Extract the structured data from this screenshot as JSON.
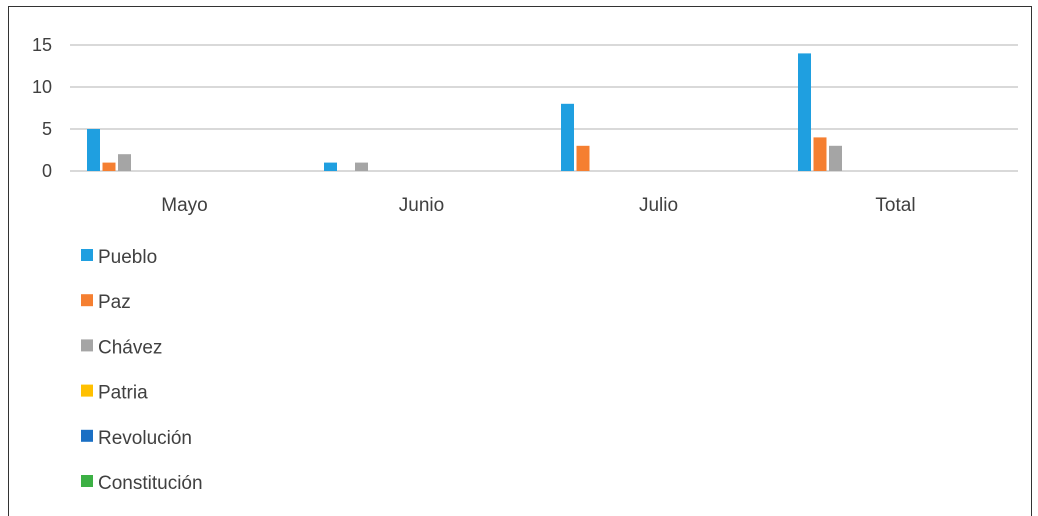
{
  "chart_data": {
    "type": "bar",
    "categories": [
      "Mayo",
      "Junio",
      "Julio",
      "Total"
    ],
    "series": [
      {
        "name": "Pueblo",
        "color": "#1f9fe0",
        "values": [
          5,
          1,
          8,
          14
        ]
      },
      {
        "name": "Paz",
        "color": "#f57f31",
        "values": [
          1,
          0,
          3,
          4
        ]
      },
      {
        "name": "Chávez",
        "color": "#a5a5a5",
        "values": [
          2,
          1,
          0,
          3
        ]
      },
      {
        "name": "Patria",
        "color": "#ffc000",
        "values": [
          0,
          0,
          0,
          0
        ]
      },
      {
        "name": "Revolución",
        "color": "#1a6fc4",
        "values": [
          0,
          0,
          0,
          0
        ]
      },
      {
        "name": "Constitución",
        "color": "#3cb044",
        "values": [
          0,
          0,
          0,
          0
        ]
      }
    ],
    "yticks": [
      0,
      5,
      10,
      15
    ],
    "ylim": [
      0,
      15
    ],
    "grid": true,
    "legend_position": "bottom-left"
  }
}
